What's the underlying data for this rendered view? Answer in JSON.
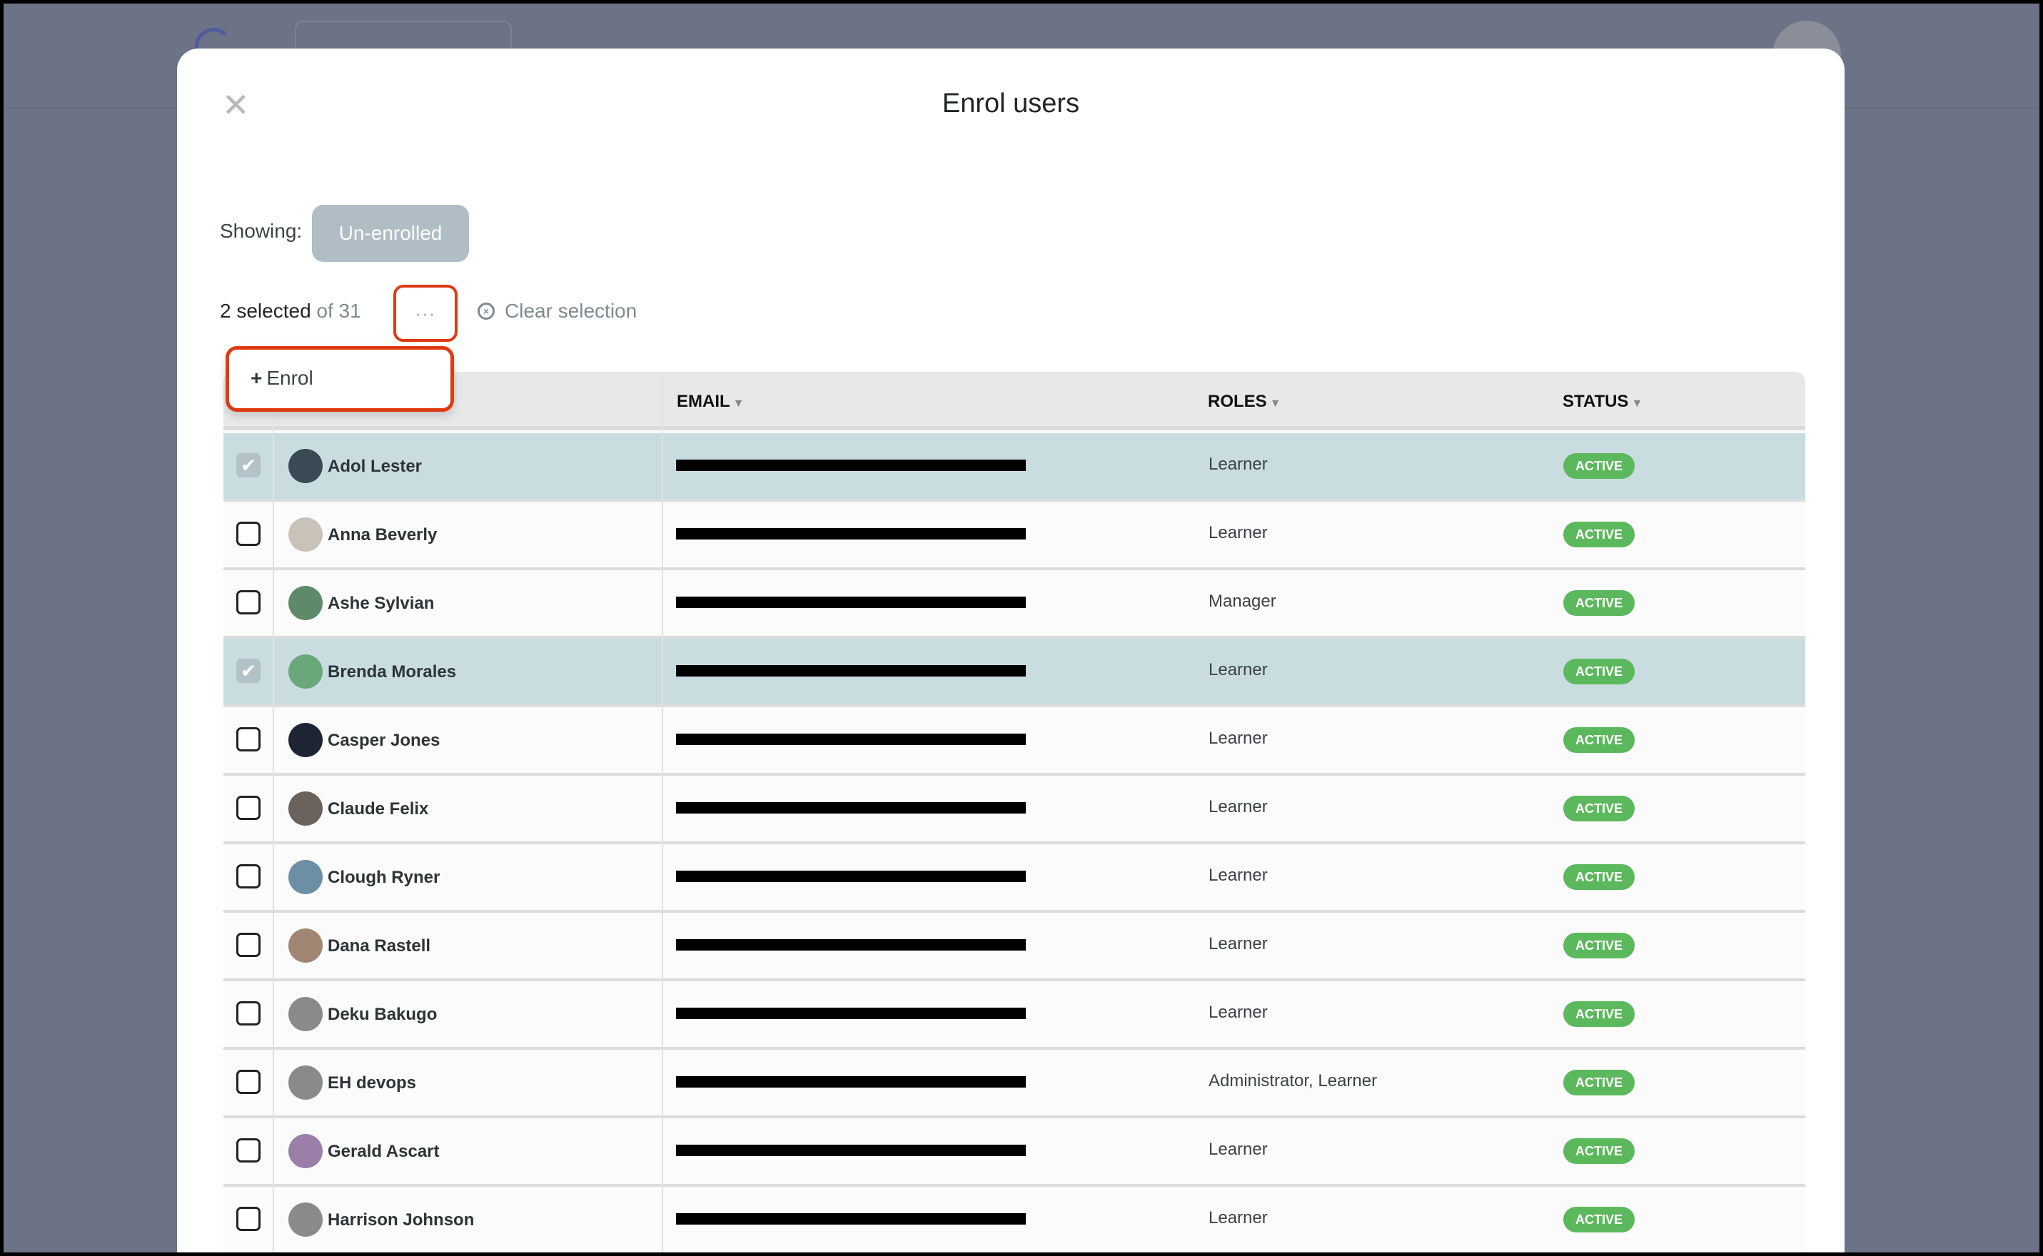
{
  "modal": {
    "title": "Enrol users",
    "close_icon": "close-icon"
  },
  "filter": {
    "label": "Showing:",
    "value": "Un-enrolled"
  },
  "selection": {
    "selected": "2 selected",
    "total": "of 31",
    "more_label": "···",
    "clear_label": "Clear selection"
  },
  "dropdown": {
    "items": [
      {
        "icon": "plus-icon",
        "icon_glyph": "+",
        "label": "Enrol"
      }
    ]
  },
  "table": {
    "headers": {
      "email": "EMAIL",
      "roles": "ROLES",
      "status": "STATUS"
    },
    "rows": [
      {
        "name": "Adol Lester",
        "role": "Learner",
        "status": "ACTIVE",
        "selected": true,
        "avatar_color": "#3a4a55"
      },
      {
        "name": "Anna Beverly",
        "role": "Learner",
        "status": "ACTIVE",
        "selected": false,
        "avatar_color": "#c9c2b8"
      },
      {
        "name": "Ashe Sylvian",
        "role": "Manager",
        "status": "ACTIVE",
        "selected": false,
        "avatar_color": "#5f8a6a"
      },
      {
        "name": "Brenda Morales",
        "role": "Learner",
        "status": "ACTIVE",
        "selected": true,
        "avatar_color": "#6aa77a"
      },
      {
        "name": "Casper Jones",
        "role": "Learner",
        "status": "ACTIVE",
        "selected": false,
        "avatar_color": "#1d2433"
      },
      {
        "name": "Claude Felix",
        "role": "Learner",
        "status": "ACTIVE",
        "selected": false,
        "avatar_color": "#6b625c"
      },
      {
        "name": "Clough Ryner",
        "role": "Learner",
        "status": "ACTIVE",
        "selected": false,
        "avatar_color": "#6d8fa5"
      },
      {
        "name": "Dana Rastell",
        "role": "Learner",
        "status": "ACTIVE",
        "selected": false,
        "avatar_color": "#a08672"
      },
      {
        "name": "Deku Bakugo",
        "role": "Learner",
        "status": "ACTIVE",
        "selected": false,
        "avatar_color": "#8a8a8a"
      },
      {
        "name": "EH devops",
        "role": "Administrator, Learner",
        "status": "ACTIVE",
        "selected": false,
        "avatar_color": "#8a8a8a"
      },
      {
        "name": "Gerald Ascart",
        "role": "Learner",
        "status": "ACTIVE",
        "selected": false,
        "avatar_color": "#9a7fa8"
      },
      {
        "name": "Harrison Johnson",
        "role": "Learner",
        "status": "ACTIVE",
        "selected": false,
        "avatar_color": "#8a8a8a"
      }
    ]
  },
  "colors": {
    "accent_highlight": "#e03a12",
    "selected_row": "#c9dde1",
    "active_badge": "#5cb85c"
  }
}
